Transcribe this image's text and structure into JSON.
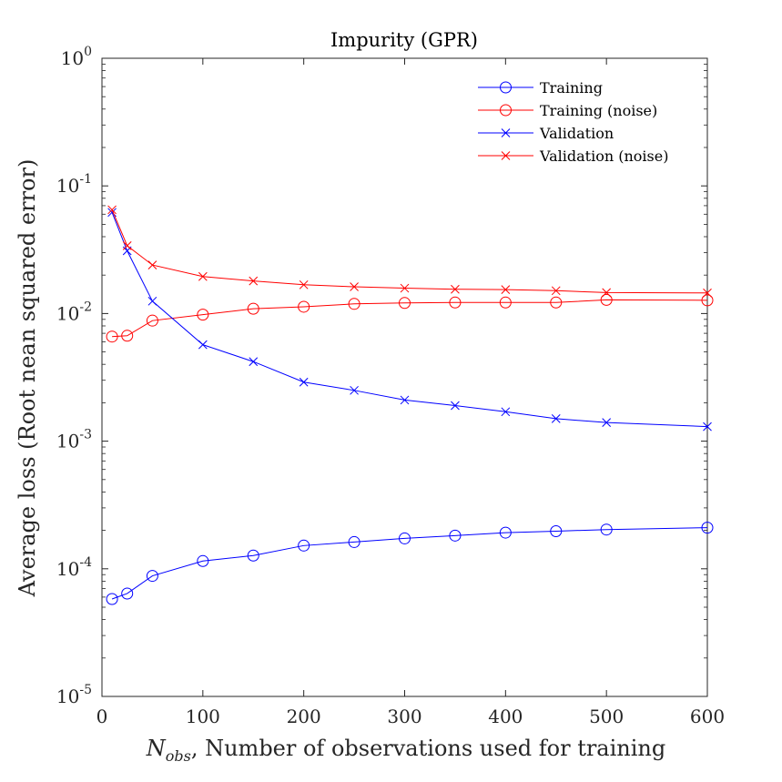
{
  "chart_data": {
    "type": "line",
    "title": "Impurity (GPR)",
    "xlabel_symbol": "N",
    "xlabel_subscript": "obs",
    "xlabel_rest": ", Number of observations used for training",
    "ylabel": "Average loss (Root nean squared error)",
    "xlim": [
      0,
      600
    ],
    "ylim": [
      1e-05,
      1
    ],
    "yscale": "log",
    "grid": false,
    "legend_position": "top-right",
    "x_ticks": [
      "0",
      "100",
      "200",
      "300",
      "400",
      "500",
      "600"
    ],
    "y_ticks": [
      {
        "base": "10",
        "exp": "-5"
      },
      {
        "base": "10",
        "exp": "-4"
      },
      {
        "base": "10",
        "exp": "-3"
      },
      {
        "base": "10",
        "exp": "-2"
      },
      {
        "base": "10",
        "exp": "-1"
      },
      {
        "base": "10",
        "exp": "0"
      }
    ],
    "x": [
      10,
      25,
      50,
      100,
      150,
      200,
      250,
      300,
      350,
      400,
      450,
      500,
      600
    ],
    "series": [
      {
        "name": "Training",
        "color": "#0000ff",
        "marker": "circle",
        "values": [
          5.8e-05,
          6.4e-05,
          8.8e-05,
          0.000115,
          0.000127,
          0.000152,
          0.000162,
          0.000173,
          0.000182,
          0.000192,
          0.000197,
          0.000203,
          0.00021
        ]
      },
      {
        "name": "Training (noise)",
        "color": "#ff0000",
        "marker": "circle",
        "values": [
          0.0066,
          0.0067,
          0.0088,
          0.0098,
          0.0109,
          0.0113,
          0.0119,
          0.0121,
          0.0122,
          0.0122,
          0.0122,
          0.0128,
          0.0127
        ]
      },
      {
        "name": "Validation",
        "color": "#0000ff",
        "marker": "x",
        "values": [
          0.062,
          0.031,
          0.0125,
          0.0057,
          0.0042,
          0.0029,
          0.0025,
          0.0021,
          0.0019,
          0.0017,
          0.0015,
          0.0014,
          0.0013
        ]
      },
      {
        "name": "Validation (noise)",
        "color": "#ff0000",
        "marker": "x",
        "values": [
          0.065,
          0.034,
          0.024,
          0.0195,
          0.018,
          0.0168,
          0.0162,
          0.0158,
          0.0155,
          0.0154,
          0.0151,
          0.0146,
          0.0145
        ]
      }
    ]
  }
}
